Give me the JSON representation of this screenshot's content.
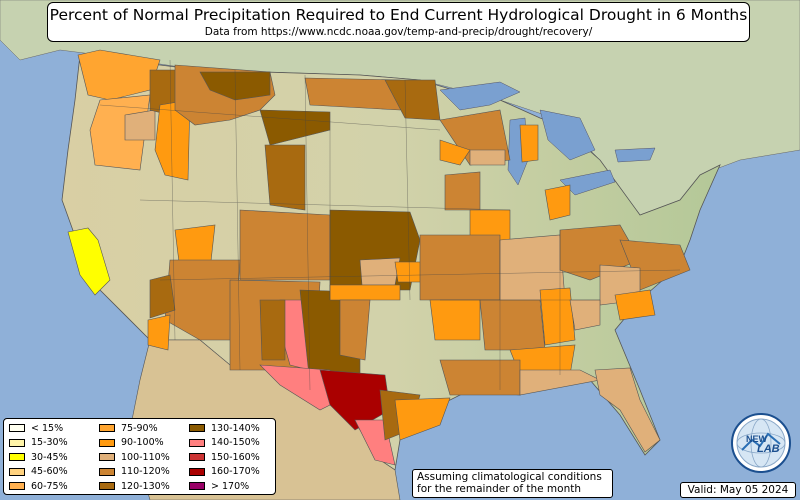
{
  "header": {
    "title": "Percent of Normal Precipitation Required to End Current Hydrological Drought in 6 Months",
    "subtitle": "Data from https://www.ncdc.noaa.gov/temp-and-precip/drought/recovery/"
  },
  "legend": {
    "items": [
      {
        "label": "< 15%",
        "color": "#fffff0"
      },
      {
        "label": "15-30%",
        "color": "#fff4a8"
      },
      {
        "label": "30-45%",
        "color": "#ffff00"
      },
      {
        "label": "45-60%",
        "color": "#ffd27f"
      },
      {
        "label": "60-75%",
        "color": "#ffb050"
      },
      {
        "label": "75-90%",
        "color": "#ffa530"
      },
      {
        "label": "90-100%",
        "color": "#ff9a10"
      },
      {
        "label": "100-110%",
        "color": "#e0b07a"
      },
      {
        "label": "110-120%",
        "color": "#cc8433"
      },
      {
        "label": "120-130%",
        "color": "#a86a10"
      },
      {
        "label": "130-140%",
        "color": "#8b5a00"
      },
      {
        "label": "140-150%",
        "color": "#ff7f7f"
      },
      {
        "label": "150-160%",
        "color": "#cc3333"
      },
      {
        "label": "160-170%",
        "color": "#aa0000"
      },
      {
        "label": "> 170%",
        "color": "#990066"
      }
    ]
  },
  "note": {
    "line1": "Assuming climatological conditions",
    "line2": "for the remainder of the month"
  },
  "valid": "Valid: May 05 2024",
  "logo": {
    "text_top": "NEW",
    "text_bottom": "LAB"
  },
  "colors": {
    "ocean": "#8fb0d8",
    "land": "#d6d0a8",
    "land_east": "#b8c89a",
    "canada": "#c8d4b4",
    "mexico": "#dcc89c",
    "lakes": "#7aa0d0"
  }
}
